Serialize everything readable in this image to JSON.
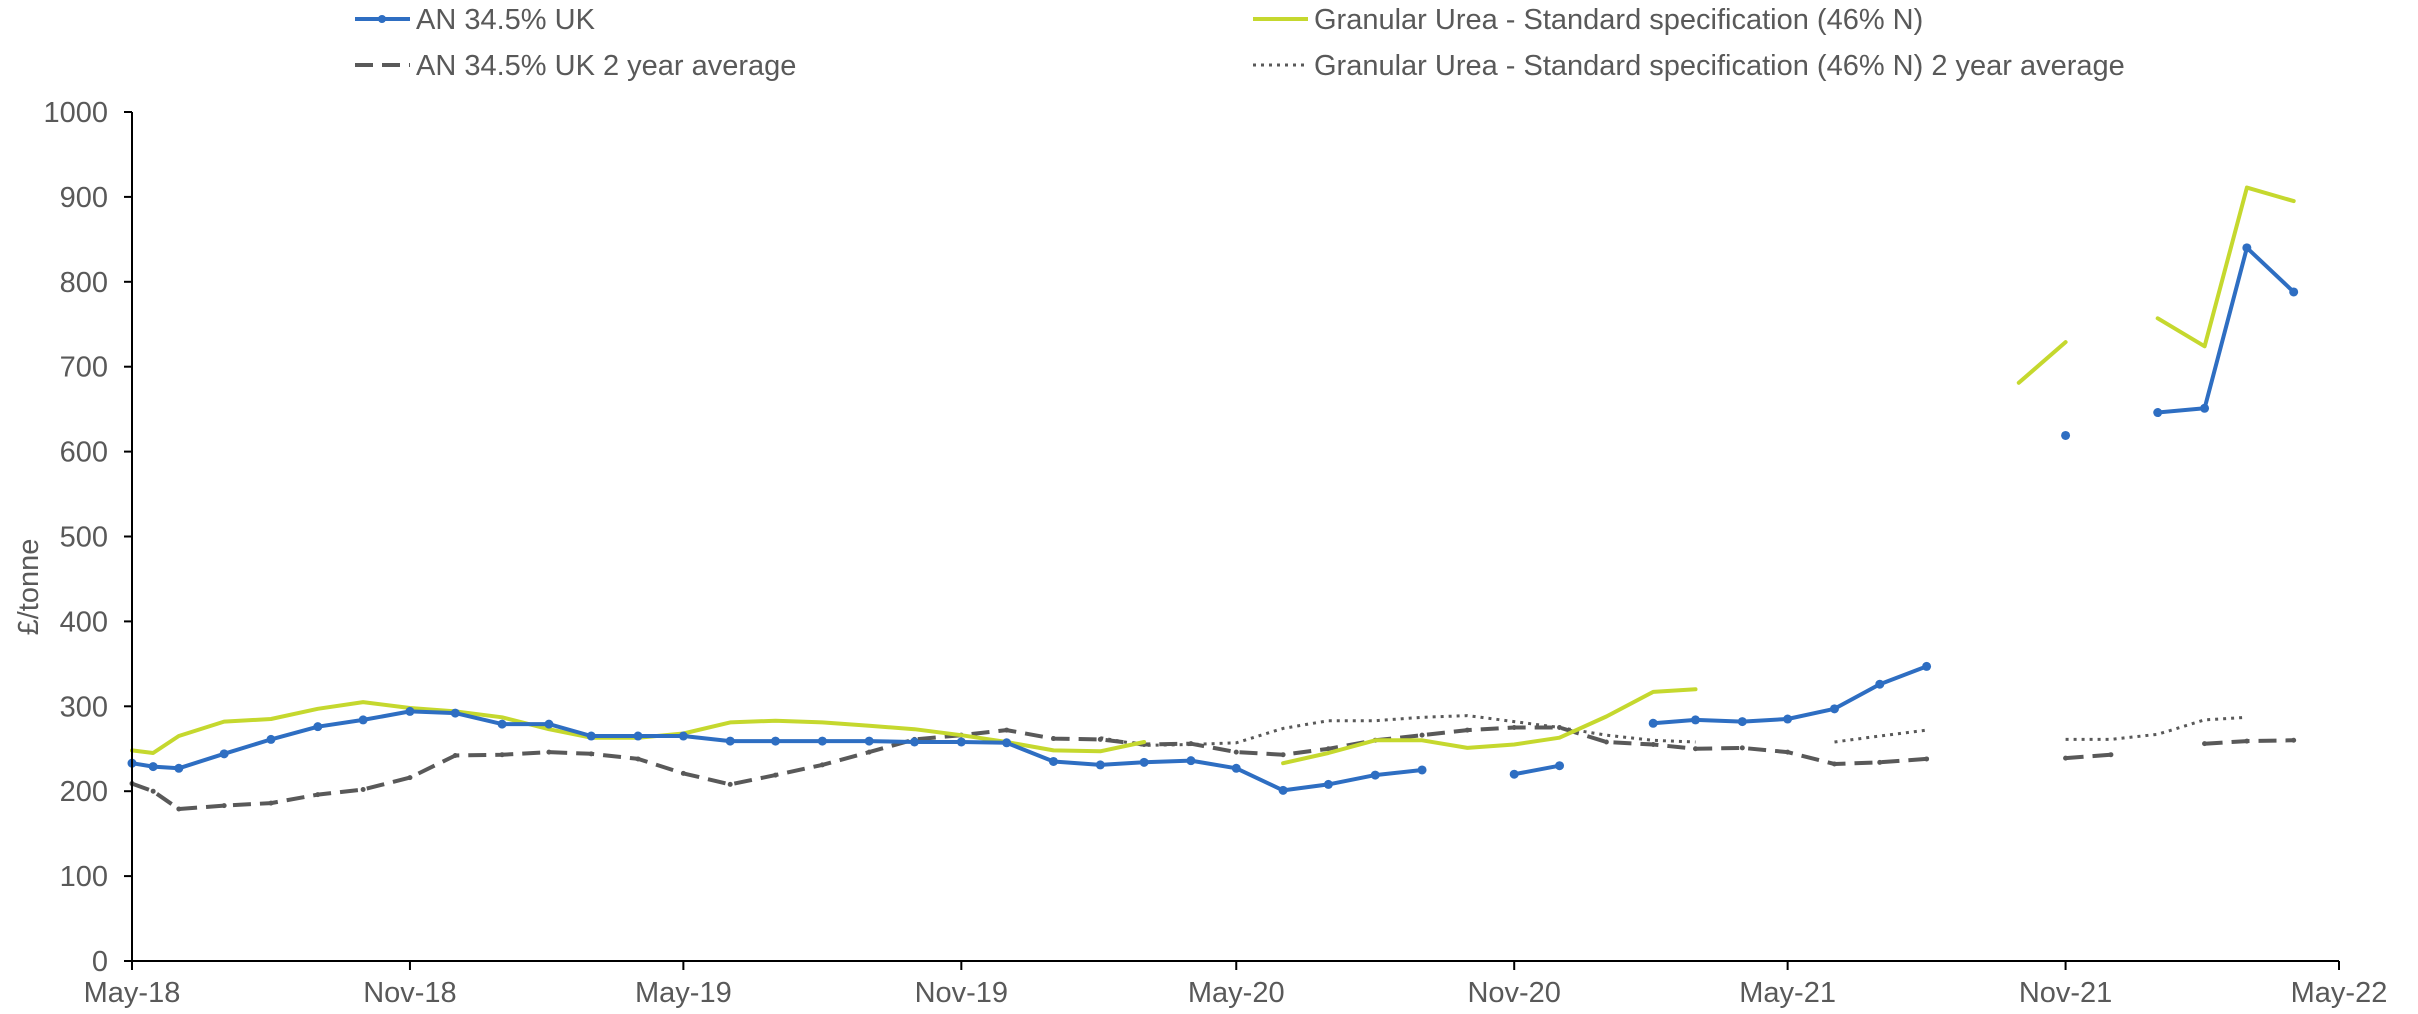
{
  "chart_data": {
    "type": "line",
    "ylabel": "£/tonne",
    "ylim": [
      0,
      1000
    ],
    "yticks": [
      "0",
      "100",
      "200",
      "300",
      "400",
      "500",
      "600",
      "700",
      "800",
      "900",
      "1000"
    ],
    "xticks": [
      "May-18",
      "Nov-18",
      "May-19",
      "Nov-19",
      "May-20",
      "Nov-20",
      "May-21",
      "Nov-21",
      "May-22"
    ],
    "x_range": [
      "2018-05-01",
      "2022-05-01"
    ],
    "legend_position": "top",
    "grid": false,
    "series": [
      {
        "name": "AN 34.5% UK",
        "color": "#2E6EC2",
        "style": "solid-markers",
        "points": [
          [
            "2018-05-01",
            233
          ],
          [
            "2018-05-15",
            229
          ],
          [
            "2018-06-01",
            227
          ],
          [
            "2018-07-01",
            244
          ],
          [
            "2018-08-01",
            261
          ],
          [
            "2018-09-01",
            276
          ],
          [
            "2018-10-01",
            284
          ],
          [
            "2018-11-01",
            294
          ],
          [
            "2018-12-01",
            292
          ],
          [
            "2019-01-01",
            279
          ],
          [
            "2019-02-01",
            279
          ],
          [
            "2019-03-01",
            265
          ],
          [
            "2019-04-01",
            265
          ],
          [
            "2019-05-01",
            265
          ],
          [
            "2019-06-01",
            259
          ],
          [
            "2019-07-01",
            259
          ],
          [
            "2019-08-01",
            259
          ],
          [
            "2019-09-01",
            259
          ],
          [
            "2019-10-01",
            258
          ],
          [
            "2019-11-01",
            258
          ],
          [
            "2019-12-01",
            257
          ],
          [
            "2020-01-01",
            235
          ],
          [
            "2020-02-01",
            231
          ],
          [
            "2020-03-01",
            234
          ],
          [
            "2020-04-01",
            236
          ],
          [
            "2020-05-01",
            227
          ],
          [
            "2020-06-01",
            201
          ],
          [
            "2020-07-01",
            208
          ],
          [
            "2020-08-01",
            219
          ],
          [
            "2020-09-01",
            225
          ],
          null,
          [
            "2020-11-01",
            220
          ],
          [
            "2020-12-01",
            230
          ],
          null,
          [
            "2021-02-01",
            280
          ],
          [
            "2021-03-01",
            284
          ],
          [
            "2021-04-01",
            282
          ],
          [
            "2021-05-01",
            285
          ],
          [
            "2021-06-01",
            297
          ],
          [
            "2021-07-01",
            326
          ],
          [
            "2021-08-01",
            347
          ],
          null,
          [
            "2021-11-01",
            619
          ],
          null,
          [
            "2022-01-01",
            646
          ],
          [
            "2022-02-01",
            651
          ],
          [
            "2022-03-01",
            840
          ],
          [
            "2022-04-01",
            788
          ]
        ]
      },
      {
        "name": "Granular Urea - Standard specification (46% N)",
        "color": "#C5D82E",
        "style": "solid",
        "points": [
          [
            "2018-05-01",
            248
          ],
          [
            "2018-05-15",
            245
          ],
          [
            "2018-06-01",
            265
          ],
          [
            "2018-07-01",
            282
          ],
          [
            "2018-08-01",
            285
          ],
          [
            "2018-09-01",
            297
          ],
          [
            "2018-10-01",
            305
          ],
          [
            "2018-11-01",
            298
          ],
          [
            "2018-12-01",
            294
          ],
          [
            "2019-01-01",
            287
          ],
          [
            "2019-02-01",
            273
          ],
          [
            "2019-03-01",
            263
          ],
          [
            "2019-04-01",
            263
          ],
          [
            "2019-05-01",
            268
          ],
          [
            "2019-06-01",
            281
          ],
          [
            "2019-07-01",
            283
          ],
          [
            "2019-08-01",
            281
          ],
          [
            "2019-09-01",
            277
          ],
          [
            "2019-10-01",
            273
          ],
          [
            "2019-11-01",
            266
          ],
          [
            "2019-12-01",
            258
          ],
          [
            "2020-01-01",
            248
          ],
          [
            "2020-02-01",
            247
          ],
          [
            "2020-03-01",
            258
          ],
          null,
          [
            "2020-06-01",
            233
          ],
          [
            "2020-07-01",
            245
          ],
          [
            "2020-08-01",
            260
          ],
          [
            "2020-09-01",
            260
          ],
          [
            "2020-10-01",
            251
          ],
          [
            "2020-11-01",
            255
          ],
          [
            "2020-12-01",
            263
          ],
          [
            "2021-01-01",
            288
          ],
          [
            "2021-02-01",
            317
          ],
          [
            "2021-03-01",
            320
          ],
          null,
          [
            "2021-10-01",
            681
          ],
          [
            "2021-11-01",
            729
          ],
          null,
          [
            "2022-01-01",
            757
          ],
          [
            "2022-02-01",
            724
          ],
          [
            "2022-03-01",
            911
          ],
          [
            "2022-04-01",
            895
          ]
        ]
      },
      {
        "name": "AN 34.5% UK 2 year average",
        "color": "#595959",
        "style": "dashed",
        "points": [
          [
            "2018-05-01",
            209
          ],
          [
            "2018-05-15",
            200
          ],
          [
            "2018-06-01",
            179
          ],
          [
            "2018-07-01",
            183
          ],
          [
            "2018-08-01",
            186
          ],
          [
            "2018-09-01",
            196
          ],
          [
            "2018-10-01",
            202
          ],
          [
            "2018-11-01",
            216
          ],
          [
            "2018-12-01",
            242
          ],
          [
            "2019-01-01",
            243
          ],
          [
            "2019-02-01",
            246
          ],
          [
            "2019-03-01",
            244
          ],
          [
            "2019-04-01",
            238
          ],
          [
            "2019-05-01",
            221
          ],
          [
            "2019-06-01",
            208
          ],
          [
            "2019-07-01",
            219
          ],
          [
            "2019-08-01",
            231
          ],
          [
            "2019-09-01",
            246
          ],
          [
            "2019-10-01",
            261
          ],
          [
            "2019-11-01",
            266
          ],
          [
            "2019-12-01",
            272
          ],
          [
            "2020-01-01",
            262
          ],
          [
            "2020-02-01",
            261
          ],
          [
            "2020-03-01",
            255
          ],
          [
            "2020-04-01",
            256
          ],
          [
            "2020-05-01",
            246
          ],
          [
            "2020-06-01",
            243
          ],
          [
            "2020-07-01",
            250
          ],
          [
            "2020-08-01",
            260
          ],
          [
            "2020-09-01",
            266
          ],
          [
            "2020-10-01",
            272
          ],
          [
            "2020-11-01",
            275
          ],
          [
            "2020-12-01",
            275
          ],
          [
            "2021-01-01",
            258
          ],
          [
            "2021-02-01",
            255
          ],
          [
            "2021-03-01",
            250
          ],
          [
            "2021-04-01",
            251
          ],
          [
            "2021-05-01",
            246
          ],
          [
            "2021-06-01",
            232
          ],
          [
            "2021-07-01",
            234
          ],
          [
            "2021-08-01",
            238
          ],
          null,
          [
            "2021-11-01",
            239
          ],
          [
            "2021-12-01",
            243
          ],
          null,
          [
            "2022-02-01",
            256
          ],
          [
            "2022-03-01",
            259
          ],
          [
            "2022-04-01",
            260
          ]
        ]
      },
      {
        "name": "Granular Urea - Standard specification (46% N) 2 year average",
        "color": "#595959",
        "style": "dotted",
        "points": [
          [
            "2020-02-01",
            263
          ],
          [
            "2020-03-01",
            254
          ],
          [
            "2020-04-01",
            255
          ],
          [
            "2020-05-01",
            257
          ],
          [
            "2020-06-01",
            274
          ],
          [
            "2020-07-01",
            283
          ],
          [
            "2020-08-01",
            283
          ],
          [
            "2020-09-01",
            287
          ],
          [
            "2020-10-01",
            289
          ],
          [
            "2020-11-01",
            282
          ],
          [
            "2020-12-01",
            275
          ],
          [
            "2021-01-01",
            266
          ],
          [
            "2021-02-01",
            260
          ],
          [
            "2021-03-01",
            258
          ],
          null,
          [
            "2021-06-01",
            258
          ],
          [
            "2021-07-01",
            265
          ],
          [
            "2021-08-01",
            272
          ],
          null,
          [
            "2021-11-01",
            261
          ],
          [
            "2021-12-01",
            261
          ],
          [
            "2022-01-01",
            267
          ],
          [
            "2022-02-01",
            284
          ],
          [
            "2022-03-01",
            287
          ]
        ]
      }
    ]
  }
}
